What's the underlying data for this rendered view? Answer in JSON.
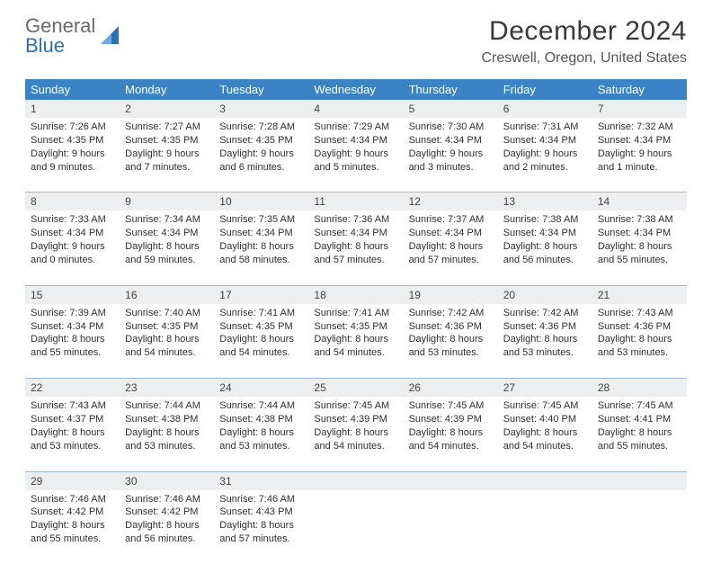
{
  "logo": {
    "text1": "General",
    "text2": "Blue"
  },
  "title": "December 2024",
  "subtitle": "Creswell, Oregon, United States",
  "colors": {
    "header_bg": "#3a84c5",
    "header_text": "#ffffff",
    "daynum_bg": "#eceeef",
    "week_border": "#9fb8cc",
    "body_text": "#2f2f2f",
    "title_text": "#3a3a3a",
    "logo_gray": "#6a6a6a",
    "logo_blue": "#2a72b5"
  },
  "typography": {
    "title_fontsize": 30,
    "subtitle_fontsize": 16,
    "header_fontsize": 13,
    "daynum_fontsize": 12,
    "body_fontsize": 11
  },
  "day_labels": [
    "Sunday",
    "Monday",
    "Tuesday",
    "Wednesday",
    "Thursday",
    "Friday",
    "Saturday"
  ],
  "weeks": [
    {
      "nums": [
        "1",
        "2",
        "3",
        "4",
        "5",
        "6",
        "7"
      ],
      "cells": [
        {
          "sunrise": "Sunrise: 7:26 AM",
          "sunset": "Sunset: 4:35 PM",
          "d1": "Daylight: 9 hours",
          "d2": "and 9 minutes."
        },
        {
          "sunrise": "Sunrise: 7:27 AM",
          "sunset": "Sunset: 4:35 PM",
          "d1": "Daylight: 9 hours",
          "d2": "and 7 minutes."
        },
        {
          "sunrise": "Sunrise: 7:28 AM",
          "sunset": "Sunset: 4:35 PM",
          "d1": "Daylight: 9 hours",
          "d2": "and 6 minutes."
        },
        {
          "sunrise": "Sunrise: 7:29 AM",
          "sunset": "Sunset: 4:34 PM",
          "d1": "Daylight: 9 hours",
          "d2": "and 5 minutes."
        },
        {
          "sunrise": "Sunrise: 7:30 AM",
          "sunset": "Sunset: 4:34 PM",
          "d1": "Daylight: 9 hours",
          "d2": "and 3 minutes."
        },
        {
          "sunrise": "Sunrise: 7:31 AM",
          "sunset": "Sunset: 4:34 PM",
          "d1": "Daylight: 9 hours",
          "d2": "and 2 minutes."
        },
        {
          "sunrise": "Sunrise: 7:32 AM",
          "sunset": "Sunset: 4:34 PM",
          "d1": "Daylight: 9 hours",
          "d2": "and 1 minute."
        }
      ]
    },
    {
      "nums": [
        "8",
        "9",
        "10",
        "11",
        "12",
        "13",
        "14"
      ],
      "cells": [
        {
          "sunrise": "Sunrise: 7:33 AM",
          "sunset": "Sunset: 4:34 PM",
          "d1": "Daylight: 9 hours",
          "d2": "and 0 minutes."
        },
        {
          "sunrise": "Sunrise: 7:34 AM",
          "sunset": "Sunset: 4:34 PM",
          "d1": "Daylight: 8 hours",
          "d2": "and 59 minutes."
        },
        {
          "sunrise": "Sunrise: 7:35 AM",
          "sunset": "Sunset: 4:34 PM",
          "d1": "Daylight: 8 hours",
          "d2": "and 58 minutes."
        },
        {
          "sunrise": "Sunrise: 7:36 AM",
          "sunset": "Sunset: 4:34 PM",
          "d1": "Daylight: 8 hours",
          "d2": "and 57 minutes."
        },
        {
          "sunrise": "Sunrise: 7:37 AM",
          "sunset": "Sunset: 4:34 PM",
          "d1": "Daylight: 8 hours",
          "d2": "and 57 minutes."
        },
        {
          "sunrise": "Sunrise: 7:38 AM",
          "sunset": "Sunset: 4:34 PM",
          "d1": "Daylight: 8 hours",
          "d2": "and 56 minutes."
        },
        {
          "sunrise": "Sunrise: 7:38 AM",
          "sunset": "Sunset: 4:34 PM",
          "d1": "Daylight: 8 hours",
          "d2": "and 55 minutes."
        }
      ]
    },
    {
      "nums": [
        "15",
        "16",
        "17",
        "18",
        "19",
        "20",
        "21"
      ],
      "cells": [
        {
          "sunrise": "Sunrise: 7:39 AM",
          "sunset": "Sunset: 4:34 PM",
          "d1": "Daylight: 8 hours",
          "d2": "and 55 minutes."
        },
        {
          "sunrise": "Sunrise: 7:40 AM",
          "sunset": "Sunset: 4:35 PM",
          "d1": "Daylight: 8 hours",
          "d2": "and 54 minutes."
        },
        {
          "sunrise": "Sunrise: 7:41 AM",
          "sunset": "Sunset: 4:35 PM",
          "d1": "Daylight: 8 hours",
          "d2": "and 54 minutes."
        },
        {
          "sunrise": "Sunrise: 7:41 AM",
          "sunset": "Sunset: 4:35 PM",
          "d1": "Daylight: 8 hours",
          "d2": "and 54 minutes."
        },
        {
          "sunrise": "Sunrise: 7:42 AM",
          "sunset": "Sunset: 4:36 PM",
          "d1": "Daylight: 8 hours",
          "d2": "and 53 minutes."
        },
        {
          "sunrise": "Sunrise: 7:42 AM",
          "sunset": "Sunset: 4:36 PM",
          "d1": "Daylight: 8 hours",
          "d2": "and 53 minutes."
        },
        {
          "sunrise": "Sunrise: 7:43 AM",
          "sunset": "Sunset: 4:36 PM",
          "d1": "Daylight: 8 hours",
          "d2": "and 53 minutes."
        }
      ]
    },
    {
      "nums": [
        "22",
        "23",
        "24",
        "25",
        "26",
        "27",
        "28"
      ],
      "cells": [
        {
          "sunrise": "Sunrise: 7:43 AM",
          "sunset": "Sunset: 4:37 PM",
          "d1": "Daylight: 8 hours",
          "d2": "and 53 minutes."
        },
        {
          "sunrise": "Sunrise: 7:44 AM",
          "sunset": "Sunset: 4:38 PM",
          "d1": "Daylight: 8 hours",
          "d2": "and 53 minutes."
        },
        {
          "sunrise": "Sunrise: 7:44 AM",
          "sunset": "Sunset: 4:38 PM",
          "d1": "Daylight: 8 hours",
          "d2": "and 53 minutes."
        },
        {
          "sunrise": "Sunrise: 7:45 AM",
          "sunset": "Sunset: 4:39 PM",
          "d1": "Daylight: 8 hours",
          "d2": "and 54 minutes."
        },
        {
          "sunrise": "Sunrise: 7:45 AM",
          "sunset": "Sunset: 4:39 PM",
          "d1": "Daylight: 8 hours",
          "d2": "and 54 minutes."
        },
        {
          "sunrise": "Sunrise: 7:45 AM",
          "sunset": "Sunset: 4:40 PM",
          "d1": "Daylight: 8 hours",
          "d2": "and 54 minutes."
        },
        {
          "sunrise": "Sunrise: 7:45 AM",
          "sunset": "Sunset: 4:41 PM",
          "d1": "Daylight: 8 hours",
          "d2": "and 55 minutes."
        }
      ]
    },
    {
      "nums": [
        "29",
        "30",
        "31",
        "",
        "",
        "",
        ""
      ],
      "cells": [
        {
          "sunrise": "Sunrise: 7:46 AM",
          "sunset": "Sunset: 4:42 PM",
          "d1": "Daylight: 8 hours",
          "d2": "and 55 minutes."
        },
        {
          "sunrise": "Sunrise: 7:46 AM",
          "sunset": "Sunset: 4:42 PM",
          "d1": "Daylight: 8 hours",
          "d2": "and 56 minutes."
        },
        {
          "sunrise": "Sunrise: 7:46 AM",
          "sunset": "Sunset: 4:43 PM",
          "d1": "Daylight: 8 hours",
          "d2": "and 57 minutes."
        },
        null,
        null,
        null,
        null
      ]
    }
  ]
}
